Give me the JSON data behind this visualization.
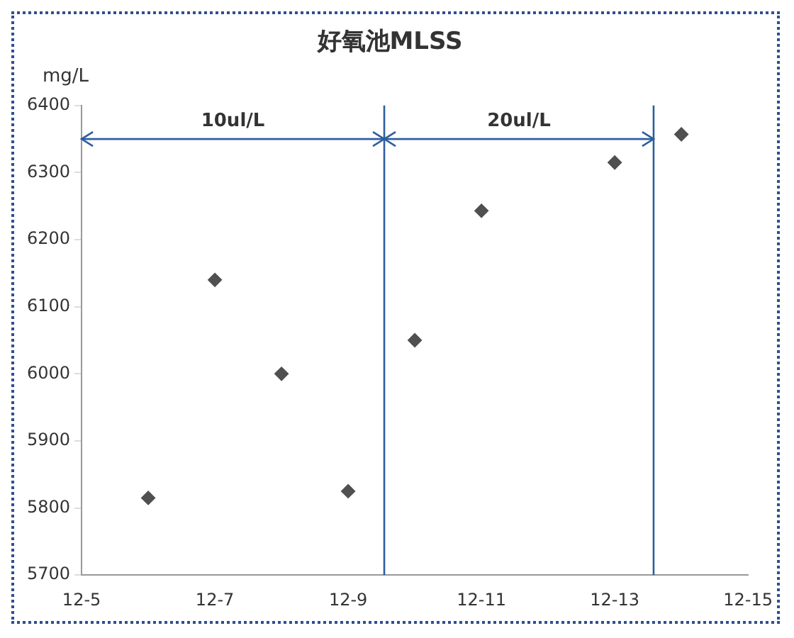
{
  "chart_data": {
    "type": "scatter",
    "title": "好氧池MLSS",
    "ylabel": "mg/L",
    "x": [
      "--12-06",
      "--12-07",
      "--12-08",
      "--12-09",
      "--12-10",
      "--12-11",
      "--12-13",
      "--12-14"
    ],
    "series": [
      {
        "color": "#505050",
        "values": [
          5815,
          6140,
          6000,
          5825,
          6050,
          6243,
          6315,
          6357
        ]
      }
    ],
    "marker": "diamond",
    "grid": false,
    "legend": false,
    "xlim": [
      "--12-05",
      "--12-15"
    ],
    "xticks": [
      {
        "value": "--12-05",
        "label": "12-5"
      },
      {
        "value": "--12-07",
        "label": "12-7"
      },
      {
        "value": "--12-09",
        "label": "12-9"
      },
      {
        "value": "--12-11",
        "label": "12-11"
      },
      {
        "value": "--12-13",
        "label": "12-13"
      },
      {
        "value": "--12-15",
        "label": "12-15"
      }
    ],
    "ylim": [
      5700,
      6400
    ],
    "yticks": [
      5700,
      5800,
      5900,
      6000,
      6100,
      6200,
      6300,
      6400
    ],
    "ref_lines": [
      {
        "axis": "x",
        "value": "--12-09T13:00",
        "color": "#2e5e9e"
      },
      {
        "axis": "x",
        "value": "--12-13T14:00",
        "color": "#2e5e9e"
      },
      {
        "axis": "y",
        "value": 6350,
        "color": "#2e5e9e"
      }
    ],
    "annotations": [
      "10ul/L",
      "20ul/L"
    ]
  }
}
